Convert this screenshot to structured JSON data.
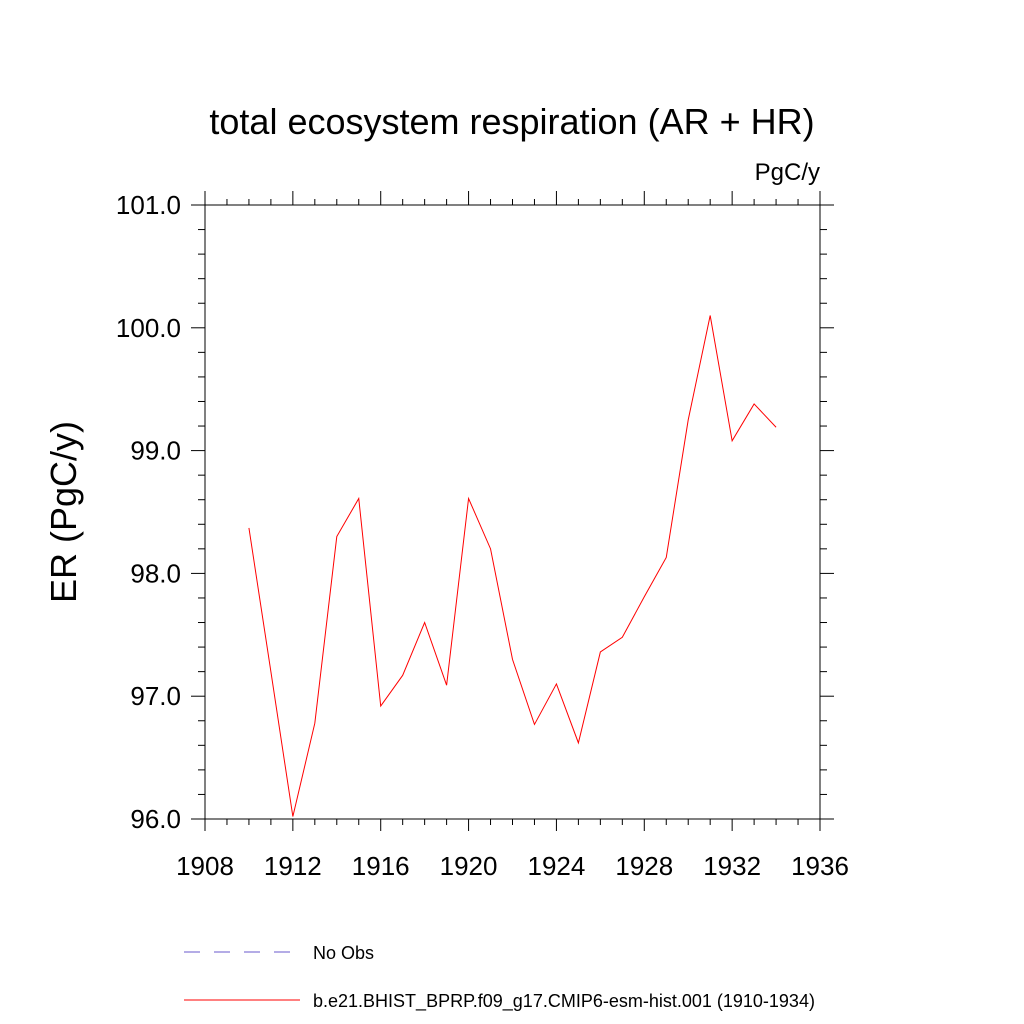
{
  "chart_data": {
    "type": "line",
    "title": "total ecosystem respiration (AR + HR)",
    "units_label": "PgC/y",
    "ylabel": "ER  (PgC/y)",
    "xlabel": "",
    "xlim": [
      1908,
      1936
    ],
    "ylim": [
      96.0,
      101.0
    ],
    "xticks": [
      "1908",
      "1912",
      "1916",
      "1920",
      "1924",
      "1928",
      "1932",
      "1936"
    ],
    "yticks": [
      "96.0",
      "97.0",
      "98.0",
      "99.0",
      "100.0",
      "101.0"
    ],
    "series": [
      {
        "name": "b.e21.BHIST_BPRP.f09_g17.CMIP6-esm-hist.001 (1910-1934)",
        "color": "#ff0000",
        "style": "solid",
        "x": [
          1910,
          1911,
          1912,
          1913,
          1914,
          1915,
          1916,
          1917,
          1918,
          1919,
          1920,
          1921,
          1922,
          1923,
          1924,
          1925,
          1926,
          1927,
          1928,
          1929,
          1930,
          1931,
          1932,
          1933,
          1934
        ],
        "y": [
          98.37,
          97.2,
          96.02,
          96.78,
          98.3,
          98.61,
          96.92,
          97.17,
          97.6,
          97.09,
          98.61,
          98.2,
          97.3,
          96.77,
          97.1,
          96.62,
          97.36,
          97.48,
          97.81,
          98.13,
          99.25,
          100.1,
          99.08,
          99.38,
          99.19
        ]
      }
    ],
    "legend": [
      {
        "label": "No Obs",
        "color": "#6a5acd",
        "style": "dashed"
      },
      {
        "label": "b.e21.BHIST_BPRP.f09_g17.CMIP6-esm-hist.001 (1910-1934)",
        "color": "#ff0000",
        "style": "solid"
      }
    ]
  }
}
